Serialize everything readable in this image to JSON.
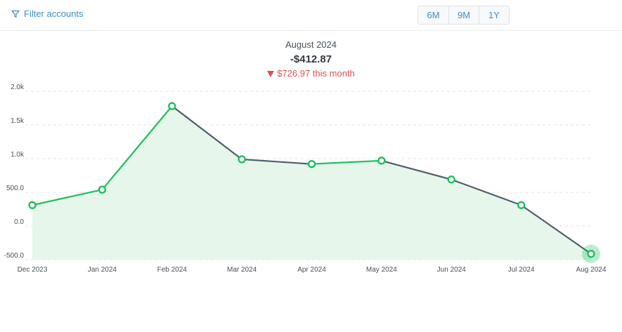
{
  "toolbar": {
    "filter_label": "Filter accounts",
    "filter_icon": "funnel-icon",
    "ranges": [
      "6M",
      "9M",
      "1Y"
    ]
  },
  "summary": {
    "period": "August 2024",
    "balance": "-$412.87",
    "change": "$726.97 this month",
    "change_icon": "triangle-down-icon",
    "change_color": "#d9534f"
  },
  "colors": {
    "accent": "#3d8fc5",
    "increase_line": "#1fbf5f",
    "decrease_line": "#515e6b",
    "area_fill": "#e6f6ea"
  },
  "chart_data": {
    "type": "area",
    "categories": [
      "Dec 2023",
      "Jan 2024",
      "Feb 2024",
      "Mar 2024",
      "Apr 2024",
      "May 2024",
      "Jun 2024",
      "Jul 2024",
      "Aug 2024"
    ],
    "values": [
      310,
      540,
      1780,
      990,
      920,
      970,
      690,
      310,
      -412.87
    ],
    "y_ticks": [
      "2.0k",
      "1.5k",
      "1.0k",
      "500.0",
      "0.0",
      "-500.0"
    ],
    "ylim": [
      -500,
      2000
    ],
    "grid": true,
    "highlighted": "Aug 2024"
  }
}
